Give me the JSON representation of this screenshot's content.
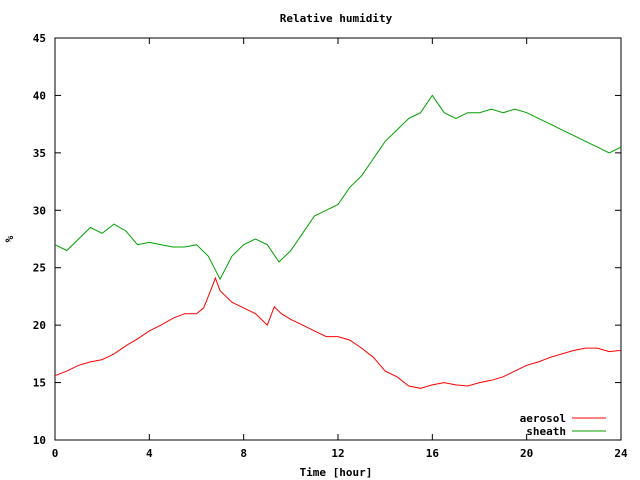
{
  "chart_data": {
    "type": "line",
    "title": "Relative humidity",
    "xlabel": "Time [hour]",
    "ylabel": "%",
    "xlim": [
      0,
      24
    ],
    "ylim": [
      10,
      45
    ],
    "xticks": [
      0,
      4,
      8,
      12,
      16,
      20,
      24
    ],
    "yticks": [
      10,
      15,
      20,
      25,
      30,
      35,
      40,
      45
    ],
    "grid": false,
    "legend_position": "bottom-right",
    "series": [
      {
        "name": "aerosol",
        "color": "#ff0000",
        "x": [
          0,
          0.5,
          1,
          1.5,
          2,
          2.5,
          3,
          3.5,
          4,
          4.5,
          5,
          5.5,
          6,
          6.3,
          6.6,
          6.8,
          7,
          7.5,
          8,
          8.5,
          9,
          9.3,
          9.6,
          10,
          10.5,
          11,
          11.5,
          12,
          12.5,
          13,
          13.5,
          14,
          14.5,
          15,
          15.5,
          16,
          16.5,
          17,
          17.5,
          18,
          18.5,
          19,
          19.5,
          20,
          20.5,
          21,
          21.5,
          22,
          22.5,
          23,
          23.5,
          24
        ],
        "y": [
          15.6,
          16.0,
          16.5,
          16.8,
          17.0,
          17.5,
          18.2,
          18.8,
          19.5,
          20.0,
          20.6,
          21.0,
          21.0,
          21.5,
          23.0,
          24.1,
          23.0,
          22.0,
          21.5,
          21.0,
          20.0,
          21.6,
          21.0,
          20.5,
          20.0,
          19.5,
          19.0,
          19.0,
          18.7,
          18.0,
          17.2,
          16.0,
          15.5,
          14.7,
          14.5,
          14.8,
          15.0,
          14.8,
          14.7,
          15.0,
          15.2,
          15.5,
          16.0,
          16.5,
          16.8,
          17.2,
          17.5,
          17.8,
          18.0,
          18.0,
          17.7,
          17.8
        ]
      },
      {
        "name": "sheath",
        "color": "#00a000",
        "x": [
          0,
          0.5,
          1,
          1.5,
          2,
          2.5,
          3,
          3.5,
          4,
          4.5,
          5,
          5.5,
          6,
          6.5,
          7,
          7.5,
          8,
          8.5,
          9,
          9.5,
          10,
          10.5,
          11,
          11.5,
          12,
          12.5,
          13,
          13.5,
          14,
          14.5,
          15,
          15.5,
          16,
          16.5,
          17,
          17.5,
          18,
          18.5,
          19,
          19.5,
          20,
          20.5,
          21,
          21.5,
          22,
          22.5,
          23,
          23.5,
          24
        ],
        "y": [
          27.0,
          26.5,
          27.5,
          28.5,
          28.0,
          28.8,
          28.2,
          27.0,
          27.2,
          27.0,
          26.8,
          26.8,
          27.0,
          26.0,
          24.0,
          26.0,
          27.0,
          27.5,
          27.0,
          25.5,
          26.5,
          28.0,
          29.5,
          30.0,
          30.5,
          32.0,
          33.0,
          34.5,
          36.0,
          37.0,
          38.0,
          38.5,
          40.0,
          38.5,
          38.0,
          38.5,
          38.5,
          38.8,
          38.5,
          38.8,
          38.5,
          38.0,
          37.5,
          37.0,
          36.5,
          36.0,
          35.5,
          35.0,
          35.5
        ]
      }
    ]
  }
}
